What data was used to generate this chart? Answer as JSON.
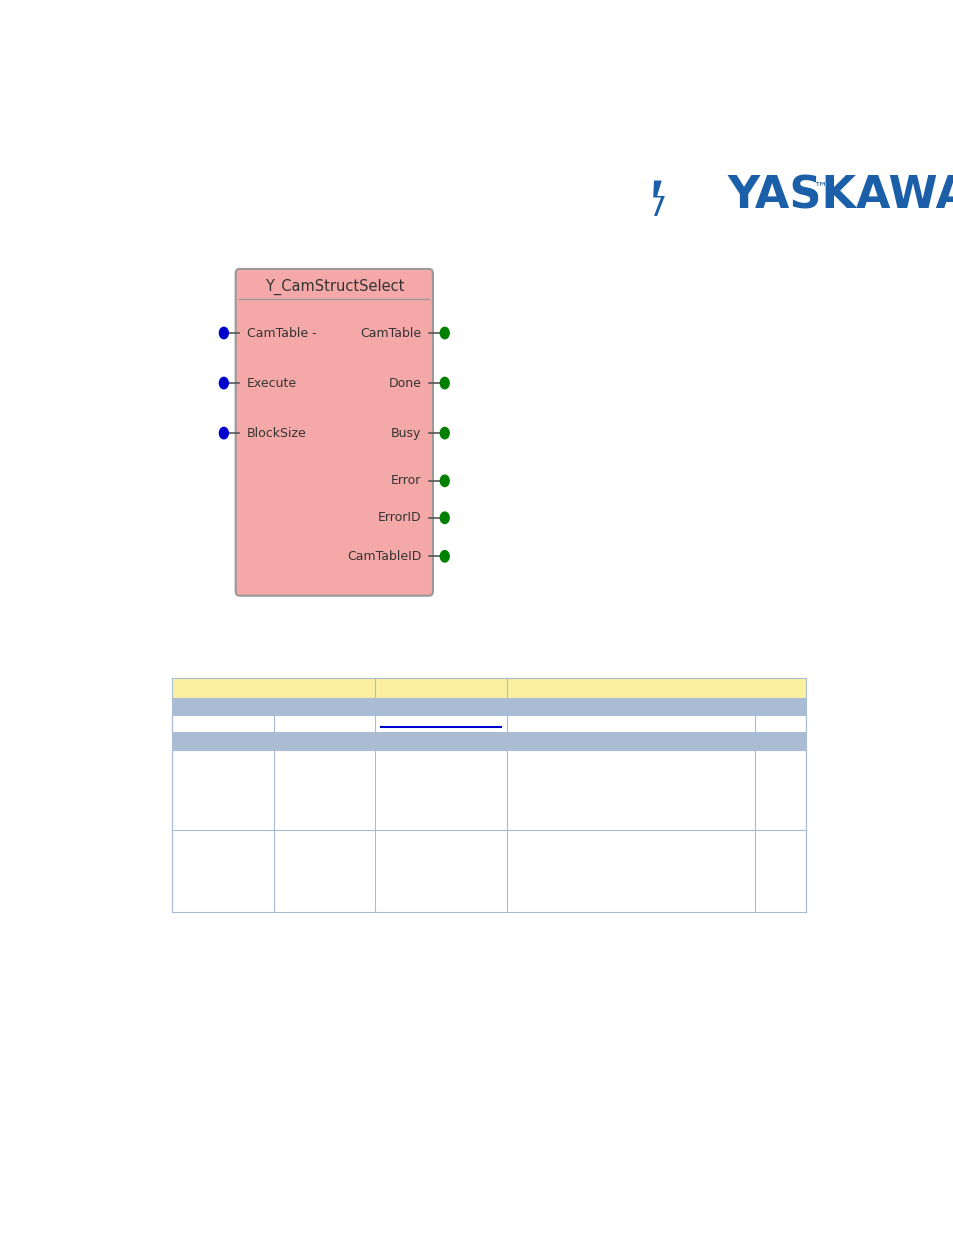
{
  "block_title": "Y_CamStructSelect",
  "block_color": "#F4A9A8",
  "block_border_color": "#999999",
  "block_text_color": "#333333",
  "input_color": "#0000CC",
  "output_color": "#008000",
  "connector_line_color": "#555555",
  "inputs": [
    "CamTable -",
    "Execute",
    "BlockSize"
  ],
  "outputs": [
    "CamTable",
    "Done",
    "Busy",
    "Error",
    "ErrorID",
    "CamTableID"
  ],
  "yaskawa_text": "YASKAWA",
  "yaskawa_color": "#1a5fa8",
  "background_color": "#ffffff",
  "table_header_color": "#FAF0A0",
  "table_subheader_color": "#AABCD4",
  "table_border_color": "#AABCD4",
  "underline_color": "#0000CC"
}
